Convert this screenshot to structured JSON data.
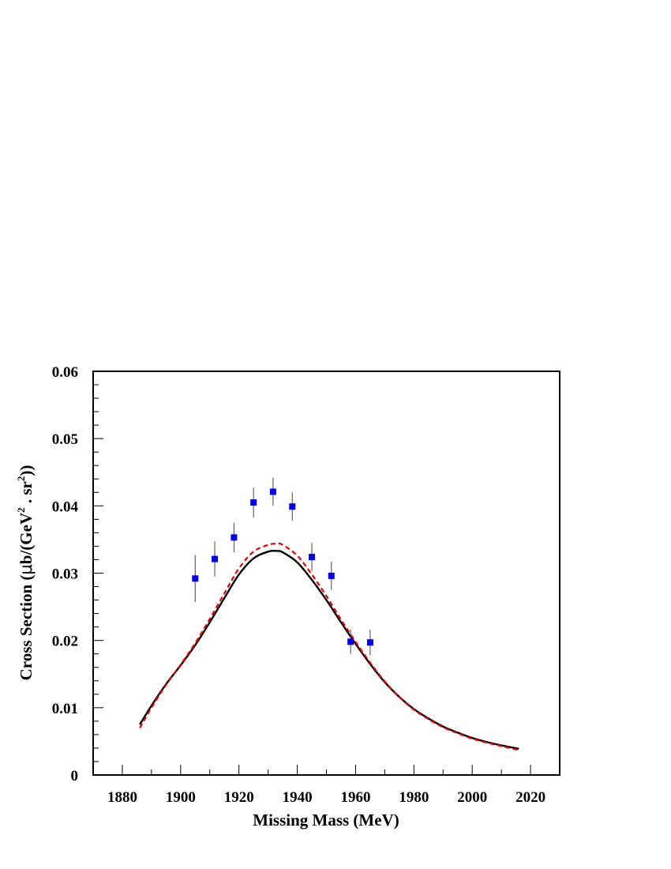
{
  "chart_data": {
    "type": "line",
    "title": "",
    "xlabel": "Missing Mass (MeV)",
    "ylabel_parts": {
      "main": "Cross Section (",
      "mu": "μ",
      "b_gev": "b/(GeV",
      "sup1": "2",
      "sep": " . sr",
      "sup2": "2",
      "close": "))"
    },
    "xlim": [
      1870,
      2030
    ],
    "ylim": [
      0,
      0.06
    ],
    "x_ticks": [
      1880,
      1900,
      1920,
      1940,
      1960,
      1980,
      2000,
      2020
    ],
    "x_tick_labels": [
      "1880",
      "1900",
      "1920",
      "1940",
      "1960",
      "1980",
      "2000",
      "2020"
    ],
    "y_ticks": [
      0,
      0.01,
      0.02,
      0.03,
      0.04,
      0.05,
      0.06
    ],
    "y_tick_labels": [
      "0",
      "0.01",
      "0.02",
      "0.03",
      "0.04",
      "0.05",
      "0.06"
    ],
    "grid": false,
    "legend": "none",
    "series": [
      {
        "kind": "points",
        "color": "#0000ee",
        "marker": "square",
        "x": [
          1905,
          1911.7,
          1918.3,
          1925,
          1931.7,
          1938.3,
          1945,
          1951.7,
          1958.3,
          1965
        ],
        "y": [
          0.0292,
          0.0321,
          0.0353,
          0.0405,
          0.0421,
          0.0399,
          0.0324,
          0.0296,
          0.0198,
          0.0197
        ],
        "err": [
          0.0035,
          0.0026,
          0.0022,
          0.0022,
          0.0021,
          0.0021,
          0.0021,
          0.0021,
          0.0018,
          0.0019
        ]
      },
      {
        "kind": "curve",
        "color": "#000000",
        "style": "solid",
        "x": [
          1886,
          1890,
          1895,
          1900,
          1905,
          1910,
          1915,
          1920,
          1925,
          1930,
          1933,
          1935,
          1940,
          1945,
          1950,
          1955,
          1960,
          1965,
          1970,
          1975,
          1980,
          1985,
          1990,
          1995,
          2000,
          2005,
          2010,
          2016
        ],
        "y": [
          0.0075,
          0.0103,
          0.0135,
          0.0163,
          0.0193,
          0.0227,
          0.0263,
          0.0298,
          0.0322,
          0.0332,
          0.0333,
          0.0331,
          0.0316,
          0.029,
          0.026,
          0.0227,
          0.0195,
          0.0165,
          0.0138,
          0.0116,
          0.0098,
          0.0084,
          0.0072,
          0.0063,
          0.0055,
          0.0049,
          0.0044,
          0.0039
        ]
      },
      {
        "kind": "curve",
        "color": "#ee0000",
        "style": "dashed",
        "x": [
          1886,
          1890,
          1895,
          1900,
          1905,
          1910,
          1915,
          1920,
          1925,
          1930,
          1933,
          1935,
          1940,
          1945,
          1950,
          1955,
          1960,
          1965,
          1970,
          1975,
          1980,
          1985,
          1990,
          1995,
          2000,
          2005,
          2010,
          2016
        ],
        "y": [
          0.007,
          0.01,
          0.0134,
          0.0164,
          0.0196,
          0.0232,
          0.027,
          0.0307,
          0.0332,
          0.0342,
          0.0344,
          0.0342,
          0.0326,
          0.0298,
          0.0266,
          0.0231,
          0.0198,
          0.0167,
          0.0139,
          0.0116,
          0.0097,
          0.0083,
          0.0071,
          0.0062,
          0.0054,
          0.0048,
          0.0043,
          0.0037
        ]
      }
    ]
  }
}
